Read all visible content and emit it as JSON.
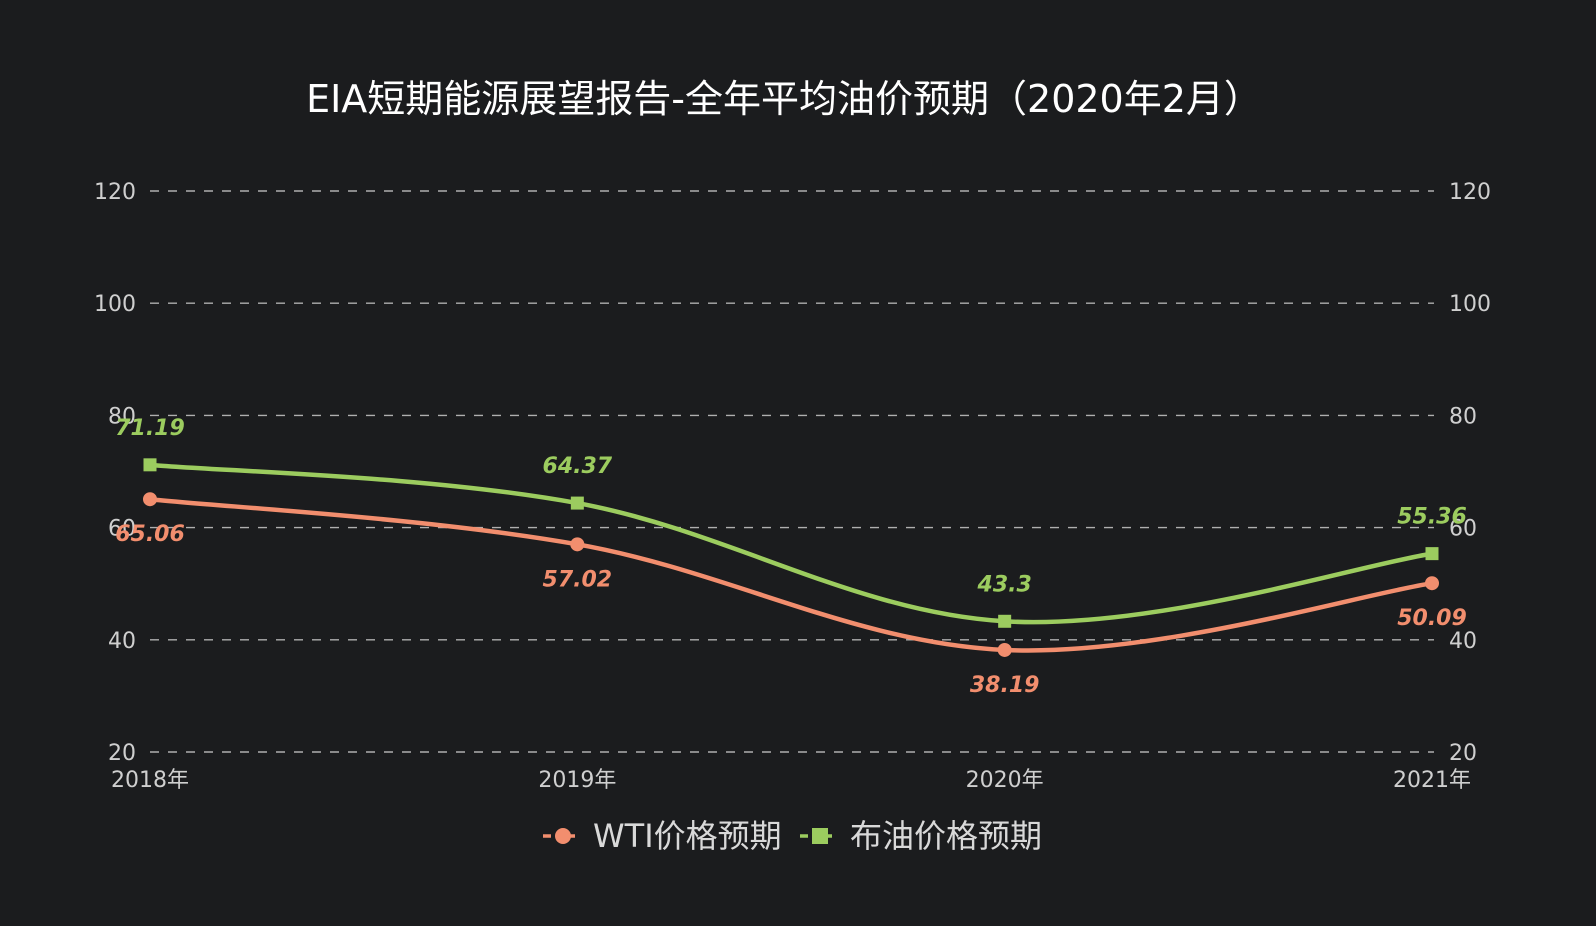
{
  "chart_data": {
    "type": "line",
    "title": "EIA短期能源展望报告-全年平均油价预期（2020年2月）",
    "categories": [
      "2018年",
      "2019年",
      "2020年",
      "2021年"
    ],
    "y_ticks": [
      "20",
      "40",
      "60",
      "80",
      "100",
      "120"
    ],
    "ylim": [
      20,
      120
    ],
    "y_axis_mirrored": true,
    "grid": true,
    "legend_position": "bottom-center",
    "series": [
      {
        "name": "WTI价格预期",
        "values": [
          65.06,
          57.02,
          38.19,
          50.09
        ],
        "labels": [
          "65.06",
          "57.02",
          "38.19",
          "50.09"
        ],
        "color": "#f28e6e",
        "marker": "circle",
        "label_position": "below"
      },
      {
        "name": "布油价格预期",
        "values": [
          71.19,
          64.37,
          43.3,
          55.36
        ],
        "labels": [
          "71.19",
          "64.37",
          "43.3",
          "55.36"
        ],
        "color": "#9ccc5f",
        "marker": "square",
        "label_position": "above"
      }
    ]
  }
}
